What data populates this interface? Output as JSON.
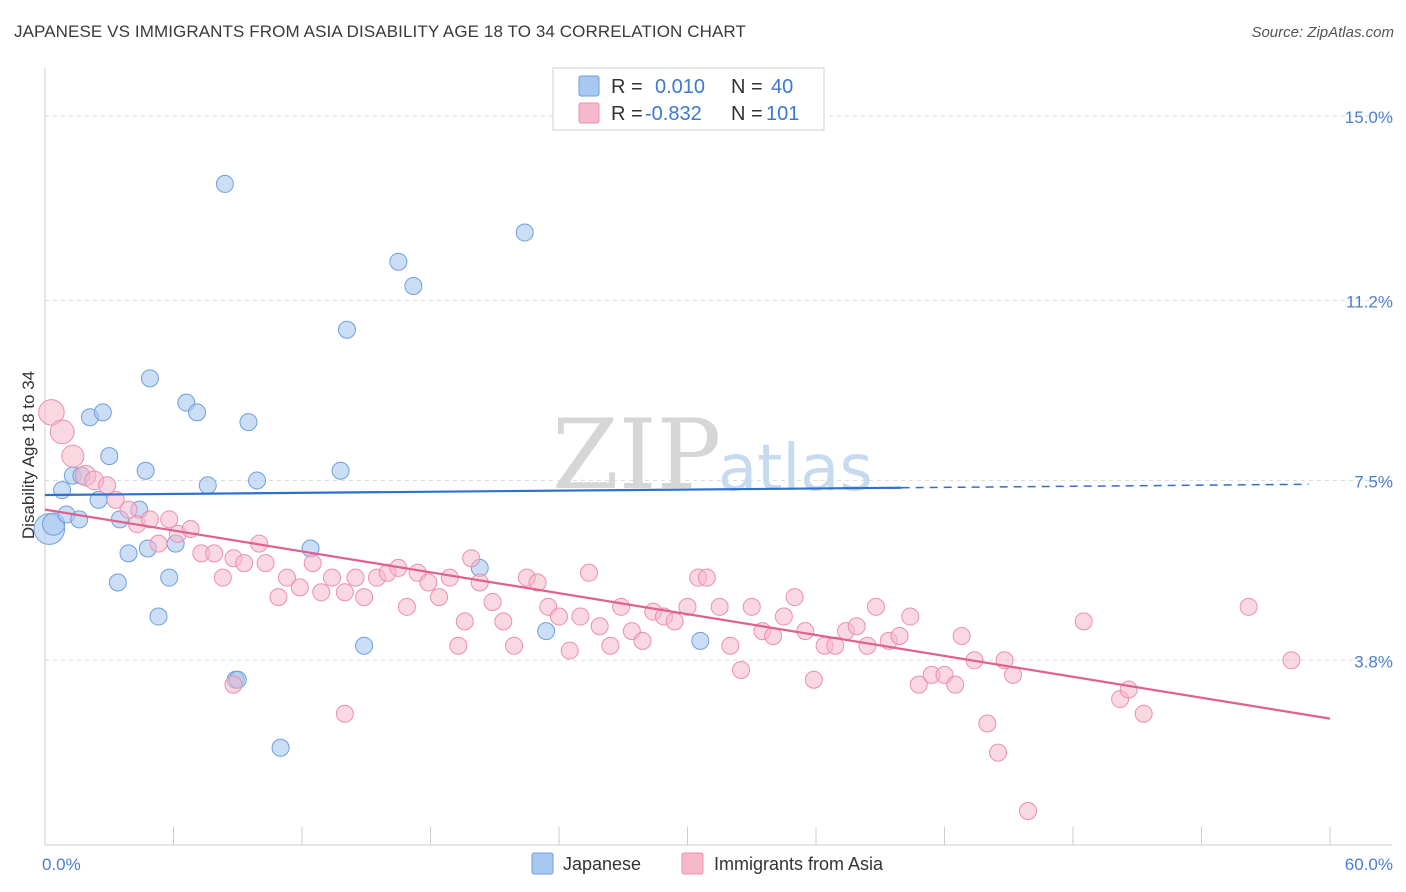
{
  "header": {
    "title": "JAPANESE VS IMMIGRANTS FROM ASIA DISABILITY AGE 18 TO 34 CORRELATION CHART",
    "source": "Source: ZipAtlas.com"
  },
  "watermark": {
    "zip": "ZIP",
    "atlas": "atlas"
  },
  "legend": {
    "japanese": {
      "r_label": "R = ",
      "r_value": "0.010",
      "n_label": "N = ",
      "n_value": "40"
    },
    "asia": {
      "r_label": "R = ",
      "r_value": "-0.832",
      "n_label": "N = ",
      "n_value": "101"
    }
  },
  "bottom_legend": {
    "japanese": "Japanese",
    "asia": "Immigrants from Asia"
  },
  "colors": {
    "japanese_fill": "#a8c8f0",
    "japanese_stroke": "#6f9fdc",
    "japanese_line": "#2f6fce",
    "asia_fill": "#f6b8cb",
    "asia_stroke": "#ec8fae",
    "asia_line": "#e0608f",
    "grid": "#dddddd",
    "tick_label": "#4a7fd0"
  },
  "chart_data": {
    "type": "scatter",
    "title": "JAPANESE VS IMMIGRANTS FROM ASIA DISABILITY AGE 18 TO 34 CORRELATION CHART",
    "xlabel": "",
    "ylabel": "Disability Age 18 to 34",
    "xlim": [
      0,
      60
    ],
    "ylim": [
      0,
      15.8
    ],
    "y_ticks": [
      {
        "value": 3.8,
        "label": "3.8%"
      },
      {
        "value": 7.5,
        "label": "7.5%"
      },
      {
        "value": 11.2,
        "label": "11.2%"
      },
      {
        "value": 15.0,
        "label": "15.0%"
      }
    ],
    "x_ticks": [
      {
        "value": 0,
        "label": "0.0%"
      },
      {
        "value": 60,
        "label": "60.0%"
      }
    ],
    "grid": true,
    "legend_position": "top-center",
    "series": [
      {
        "name": "Japanese",
        "color": "#a8c8f0",
        "points": [
          [
            0.2,
            6.5,
            1.8
          ],
          [
            0.4,
            6.6,
            1.3
          ],
          [
            0.8,
            7.3,
            1
          ],
          [
            1.0,
            6.8,
            1
          ],
          [
            1.3,
            7.6,
            1
          ],
          [
            1.6,
            6.7,
            1
          ],
          [
            1.7,
            7.6,
            1
          ],
          [
            2.1,
            8.8,
            1
          ],
          [
            2.7,
            8.9,
            1
          ],
          [
            3.0,
            8.0,
            1
          ],
          [
            2.5,
            7.1,
            1
          ],
          [
            3.5,
            6.7,
            1
          ],
          [
            3.9,
            6.0,
            1
          ],
          [
            4.4,
            6.9,
            1
          ],
          [
            4.8,
            6.1,
            1
          ],
          [
            3.4,
            5.4,
            1
          ],
          [
            4.7,
            7.7,
            1
          ],
          [
            4.9,
            9.6,
            1
          ],
          [
            5.3,
            4.7,
            1
          ],
          [
            5.8,
            5.5,
            1
          ],
          [
            6.1,
            6.2,
            1
          ],
          [
            6.6,
            9.1,
            1
          ],
          [
            7.1,
            8.9,
            1
          ],
          [
            7.6,
            7.4,
            1
          ],
          [
            8.4,
            13.6,
            1
          ],
          [
            9.5,
            8.7,
            1
          ],
          [
            9.9,
            7.5,
            1
          ],
          [
            8.9,
            3.4,
            1
          ],
          [
            9.0,
            3.4,
            1
          ],
          [
            11.0,
            2.0,
            1
          ],
          [
            12.4,
            6.1,
            1
          ],
          [
            13.8,
            7.7,
            1
          ],
          [
            14.1,
            10.6,
            1
          ],
          [
            14.9,
            4.1,
            1
          ],
          [
            16.5,
            12.0,
            1
          ],
          [
            17.2,
            11.5,
            1
          ],
          [
            20.3,
            5.7,
            1
          ],
          [
            22.4,
            12.6,
            1
          ],
          [
            23.4,
            4.4,
            1
          ],
          [
            30.6,
            4.2,
            1
          ]
        ]
      },
      {
        "name": "Immigrants from Asia",
        "color": "#f6b8cb",
        "points": [
          [
            0.3,
            8.9,
            1.5
          ],
          [
            0.8,
            8.5,
            1.4
          ],
          [
            1.3,
            8.0,
            1.3
          ],
          [
            1.9,
            7.6,
            1.2
          ],
          [
            2.3,
            7.5,
            1.1
          ],
          [
            2.9,
            7.4,
            1
          ],
          [
            3.3,
            7.1,
            1
          ],
          [
            3.9,
            6.9,
            1
          ],
          [
            4.3,
            6.6,
            1
          ],
          [
            4.9,
            6.7,
            1
          ],
          [
            5.3,
            6.2,
            1
          ],
          [
            5.8,
            6.7,
            1
          ],
          [
            6.2,
            6.4,
            1
          ],
          [
            6.8,
            6.5,
            1
          ],
          [
            7.3,
            6.0,
            1
          ],
          [
            7.9,
            6.0,
            1
          ],
          [
            8.3,
            5.5,
            1
          ],
          [
            8.8,
            5.9,
            1
          ],
          [
            9.3,
            5.8,
            1
          ],
          [
            10.0,
            6.2,
            1
          ],
          [
            10.3,
            5.8,
            1
          ],
          [
            10.9,
            5.1,
            1
          ],
          [
            11.3,
            5.5,
            1
          ],
          [
            11.9,
            5.3,
            1
          ],
          [
            12.5,
            5.8,
            1
          ],
          [
            12.9,
            5.2,
            1
          ],
          [
            13.4,
            5.5,
            1
          ],
          [
            14.0,
            5.2,
            1
          ],
          [
            14.5,
            5.5,
            1
          ],
          [
            14.9,
            5.1,
            1
          ],
          [
            15.5,
            5.5,
            1
          ],
          [
            16.0,
            5.6,
            1
          ],
          [
            16.5,
            5.7,
            1
          ],
          [
            16.9,
            4.9,
            1
          ],
          [
            17.4,
            5.6,
            1
          ],
          [
            17.9,
            5.4,
            1
          ],
          [
            18.4,
            5.1,
            1
          ],
          [
            18.9,
            5.5,
            1
          ],
          [
            19.3,
            4.1,
            1
          ],
          [
            19.9,
            5.9,
            1
          ],
          [
            19.6,
            4.6,
            1
          ],
          [
            20.3,
            5.4,
            1
          ],
          [
            20.9,
            5.0,
            1
          ],
          [
            21.4,
            4.6,
            1
          ],
          [
            21.9,
            4.1,
            1
          ],
          [
            22.5,
            5.5,
            1
          ],
          [
            23.0,
            5.4,
            1
          ],
          [
            23.5,
            4.9,
            1
          ],
          [
            24.0,
            4.7,
            1
          ],
          [
            24.5,
            4.0,
            1
          ],
          [
            25.0,
            4.7,
            1
          ],
          [
            25.4,
            5.6,
            1
          ],
          [
            25.9,
            4.5,
            1
          ],
          [
            26.4,
            4.1,
            1
          ],
          [
            26.9,
            4.9,
            1
          ],
          [
            27.4,
            4.4,
            1
          ],
          [
            27.9,
            4.2,
            1
          ],
          [
            28.4,
            4.8,
            1
          ],
          [
            28.9,
            4.7,
            1
          ],
          [
            29.4,
            4.6,
            1
          ],
          [
            30.0,
            4.9,
            1
          ],
          [
            30.5,
            5.5,
            1
          ],
          [
            30.9,
            5.5,
            1
          ],
          [
            31.5,
            4.9,
            1
          ],
          [
            32.0,
            4.1,
            1
          ],
          [
            32.5,
            3.6,
            1
          ],
          [
            33.0,
            4.9,
            1
          ],
          [
            33.5,
            4.4,
            1
          ],
          [
            34.0,
            4.3,
            1
          ],
          [
            34.5,
            4.7,
            1
          ],
          [
            35.0,
            5.1,
            1
          ],
          [
            35.5,
            4.4,
            1
          ],
          [
            35.9,
            3.4,
            1
          ],
          [
            36.4,
            4.1,
            1
          ],
          [
            36.9,
            4.1,
            1
          ],
          [
            37.4,
            4.4,
            1
          ],
          [
            37.9,
            4.5,
            1
          ],
          [
            38.4,
            4.1,
            1
          ],
          [
            38.8,
            4.9,
            1
          ],
          [
            39.4,
            4.2,
            1
          ],
          [
            39.9,
            4.3,
            1
          ],
          [
            40.4,
            4.7,
            1
          ],
          [
            40.8,
            3.3,
            1
          ],
          [
            41.4,
            3.5,
            1
          ],
          [
            42.0,
            3.5,
            1
          ],
          [
            42.5,
            3.3,
            1
          ],
          [
            42.8,
            4.3,
            1
          ],
          [
            43.4,
            3.8,
            1
          ],
          [
            44.0,
            2.5,
            1
          ],
          [
            44.5,
            1.9,
            1
          ],
          [
            44.8,
            3.8,
            1
          ],
          [
            45.2,
            3.5,
            1
          ],
          [
            45.9,
            0.7,
            1
          ],
          [
            48.5,
            4.6,
            1
          ],
          [
            50.2,
            3.0,
            1
          ],
          [
            50.6,
            3.2,
            1
          ],
          [
            51.3,
            2.7,
            1
          ],
          [
            56.2,
            4.9,
            1
          ],
          [
            58.2,
            3.8,
            1
          ],
          [
            14.0,
            2.7,
            1
          ],
          [
            8.8,
            3.3,
            1
          ]
        ]
      }
    ],
    "trendlines": [
      {
        "series": "Japanese",
        "x": [
          0,
          40
        ],
        "y": [
          7.2,
          7.35
        ],
        "dashed_extension_to": 59.0
      },
      {
        "series": "Immigrants from Asia",
        "x": [
          0,
          60
        ],
        "y": [
          6.9,
          2.6
        ]
      }
    ]
  }
}
